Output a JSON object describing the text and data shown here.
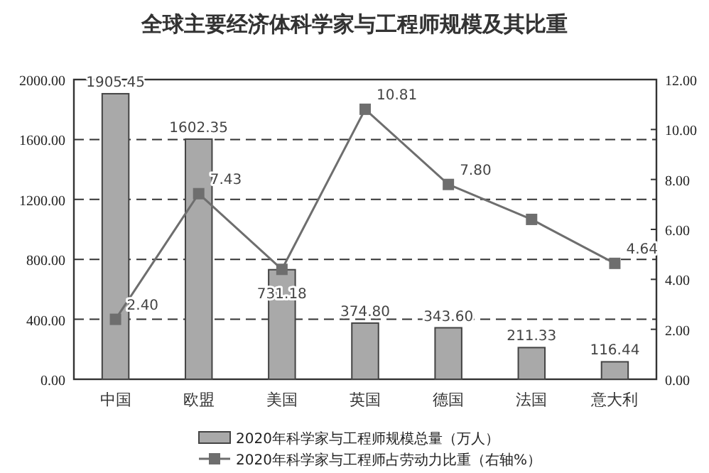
{
  "chart_data": {
    "type": "bar",
    "title": "全球主要经济体科学家与工程师规模及其比重",
    "categories": [
      "中国",
      "欧盟",
      "美国",
      "英国",
      "德国",
      "法国",
      "意大利"
    ],
    "series": [
      {
        "name": "2020年科学家与工程师规模总量（万人）",
        "color": "#a9a9a9",
        "values": [
          1905.45,
          1602.35,
          731.18,
          374.8,
          343.6,
          211.33,
          116.44
        ],
        "value_labels": [
          "1905.45",
          "1602.35",
          "731.18",
          "374.80",
          "343.60",
          "211.33",
          "116.44"
        ]
      },
      {
        "name": "2020年科学家与工程师占劳动力比重（右轴%）",
        "type": "line",
        "axis": "y2",
        "color": "#6e6e6e",
        "marker": "square",
        "values": [
          2.4,
          7.43,
          4.4,
          10.81,
          7.8,
          6.4,
          4.64
        ],
        "value_labels": [
          "2.40",
          "7.43",
          null,
          "10.81",
          "7.80",
          null,
          "4.64"
        ]
      }
    ],
    "ylim": [
      0,
      2000
    ],
    "yticks": [
      {
        "value": 0,
        "label": "0.00"
      },
      {
        "value": 400,
        "label": "400.00"
      },
      {
        "value": 800,
        "label": "800.00"
      },
      {
        "value": 1200,
        "label": "1200.00"
      },
      {
        "value": 1600,
        "label": "1600.00"
      },
      {
        "value": 2000,
        "label": "2000.00"
      }
    ],
    "y2lim": [
      0,
      12
    ],
    "y2ticks": [
      {
        "value": 0,
        "label": "0.00"
      },
      {
        "value": 2,
        "label": "2.00"
      },
      {
        "value": 4,
        "label": "4.00"
      },
      {
        "value": 6,
        "label": "6.00"
      },
      {
        "value": 8,
        "label": "8.00"
      },
      {
        "value": 10,
        "label": "10.00"
      },
      {
        "value": 12,
        "label": "12.00"
      }
    ],
    "grid": "y",
    "legend": "bottom"
  }
}
